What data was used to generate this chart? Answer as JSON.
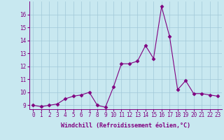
{
  "x": [
    0,
    1,
    2,
    3,
    4,
    5,
    6,
    7,
    8,
    9,
    10,
    11,
    12,
    13,
    14,
    15,
    16,
    17,
    18,
    19,
    20,
    21,
    22,
    23
  ],
  "y": [
    9.0,
    8.9,
    9.0,
    9.1,
    9.5,
    9.7,
    9.8,
    10.0,
    9.0,
    8.85,
    10.4,
    12.2,
    12.2,
    12.4,
    13.6,
    12.6,
    16.6,
    14.3,
    10.2,
    10.9,
    9.9,
    9.9,
    9.8,
    9.7
  ],
  "ylim_min": 8.7,
  "ylim_max": 17.0,
  "yticks": [
    9,
    10,
    11,
    12,
    13,
    14,
    15,
    16
  ],
  "xticks": [
    0,
    1,
    2,
    3,
    4,
    5,
    6,
    7,
    8,
    9,
    10,
    11,
    12,
    13,
    14,
    15,
    16,
    17,
    18,
    19,
    20,
    21,
    22,
    23
  ],
  "xlabel": "Windchill (Refroidissement éolien,°C)",
  "line_color": "#800080",
  "marker": "D",
  "marker_size": 2.5,
  "bg_color": "#c8e8f0",
  "grid_color": "#a0c8d8",
  "tick_fontsize": 5.5,
  "label_fontsize": 6.0
}
